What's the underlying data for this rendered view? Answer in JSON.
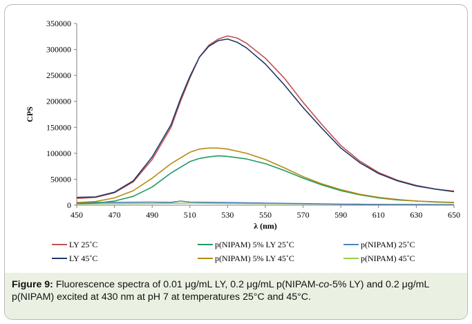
{
  "chart_data": {
    "type": "line",
    "title": "",
    "xlabel": "λ (nm)",
    "ylabel": "CPS",
    "xlim": [
      450,
      650
    ],
    "ylim": [
      0,
      350000
    ],
    "x_ticks": [
      450,
      470,
      490,
      510,
      530,
      550,
      570,
      590,
      610,
      630,
      650
    ],
    "y_ticks": [
      0,
      50000,
      100000,
      150000,
      200000,
      250000,
      300000,
      350000
    ],
    "grid": false,
    "legend_position": "bottom",
    "series": [
      {
        "name": "LY 25˚C",
        "color": "#c0504d",
        "x": [
          450,
          460,
          470,
          480,
          490,
          500,
          505,
          510,
          515,
          520,
          525,
          530,
          535,
          540,
          550,
          560,
          570,
          580,
          590,
          600,
          610,
          620,
          630,
          640,
          650
        ],
        "y": [
          13000,
          15000,
          24000,
          45000,
          88000,
          150000,
          200000,
          245000,
          285000,
          308000,
          320000,
          326000,
          322000,
          312000,
          283000,
          245000,
          198000,
          155000,
          115000,
          85000,
          63000,
          48000,
          38000,
          31000,
          27000
        ]
      },
      {
        "name": "LY 45˚C",
        "color": "#1f3864",
        "x": [
          450,
          460,
          470,
          480,
          490,
          500,
          505,
          510,
          515,
          520,
          525,
          530,
          535,
          540,
          550,
          560,
          570,
          580,
          590,
          600,
          610,
          620,
          630,
          640,
          650
        ],
        "y": [
          15000,
          16000,
          25000,
          47000,
          93000,
          155000,
          205000,
          248000,
          285000,
          306000,
          317000,
          320000,
          314000,
          303000,
          272000,
          232000,
          188000,
          148000,
          110000,
          82000,
          61000,
          47000,
          37000,
          31000,
          26000
        ]
      },
      {
        "name": "p(NIPAM) 5% LY 25˚C",
        "color": "#1f9a5f",
        "x": [
          450,
          460,
          470,
          480,
          490,
          500,
          510,
          515,
          520,
          525,
          530,
          540,
          550,
          560,
          570,
          580,
          590,
          600,
          610,
          620,
          630,
          640,
          650
        ],
        "y": [
          3000,
          4000,
          8000,
          17000,
          35000,
          62000,
          84000,
          90000,
          93000,
          95000,
          94000,
          89000,
          80000,
          67000,
          52000,
          39000,
          28000,
          20000,
          14000,
          10000,
          8000,
          6000,
          5000
        ]
      },
      {
        "name": "p(NIPAM) 5% LY 45˚C",
        "color": "#b38a12",
        "x": [
          450,
          460,
          470,
          480,
          490,
          500,
          510,
          515,
          520,
          525,
          530,
          540,
          550,
          560,
          570,
          580,
          590,
          600,
          610,
          620,
          630,
          640,
          650
        ],
        "y": [
          5000,
          7000,
          14000,
          28000,
          52000,
          80000,
          102000,
          108000,
          110000,
          110000,
          108000,
          100000,
          88000,
          72000,
          55000,
          41000,
          30000,
          21000,
          15000,
          11000,
          8000,
          6500,
          5500
        ]
      },
      {
        "name": "p(NIPAM) 25˚C",
        "color": "#4f81bd",
        "x": [
          450,
          470,
          490,
          500,
          505,
          510,
          530,
          550,
          570,
          590,
          610,
          630,
          650
        ],
        "y": [
          5000,
          5500,
          6000,
          5500,
          8000,
          6000,
          5000,
          4000,
          3000,
          2000,
          1500,
          1200,
          1000
        ]
      },
      {
        "name": "p(NIPAM) 45˚C",
        "color": "#92d050",
        "x": [
          450,
          470,
          490,
          510,
          530,
          550,
          570,
          590,
          610,
          630,
          650
        ],
        "y": [
          2500,
          3000,
          3500,
          4000,
          3500,
          3000,
          2500,
          2000,
          1500,
          1200,
          1000
        ]
      }
    ]
  },
  "caption": {
    "label": "Figure 9:",
    "parts": [
      " Fluorescence spectra of 0.01 μg/mL LY, 0.2 μg/mL p(NIPAM-",
      "co",
      "-5% LY) and 0.2 μg/mL p(NIPAM) excited at 430 nm at pH 7 at temperatures 25°C and 45°C."
    ]
  }
}
